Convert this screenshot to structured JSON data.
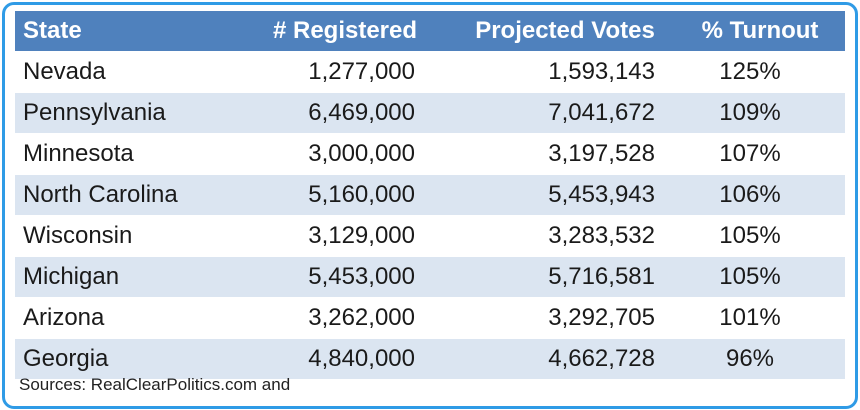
{
  "table": {
    "headers": {
      "state": "State",
      "registered": "# Registered",
      "projected": "Projected Votes",
      "turnout": "% Turnout"
    },
    "rows": [
      {
        "state": "Nevada",
        "registered": "1,277,000",
        "projected": "1,593,143",
        "turnout": "125%"
      },
      {
        "state": "Pennsylvania",
        "registered": "6,469,000",
        "projected": "7,041,672",
        "turnout": "109%"
      },
      {
        "state": "Minnesota",
        "registered": "3,000,000",
        "projected": "3,197,528",
        "turnout": "107%"
      },
      {
        "state": "North Carolina",
        "registered": "5,160,000",
        "projected": "5,453,943",
        "turnout": "106%"
      },
      {
        "state": "Wisconsin",
        "registered": "3,129,000",
        "projected": "3,283,532",
        "turnout": "105%"
      },
      {
        "state": "Michigan",
        "registered": "5,453,000",
        "projected": "5,716,581",
        "turnout": "105%"
      },
      {
        "state": "Arizona",
        "registered": "3,262,000",
        "projected": "3,292,705",
        "turnout": "101%"
      },
      {
        "state": "Georgia",
        "registered": "4,840,000",
        "projected": "4,662,728",
        "turnout": "96%"
      }
    ]
  },
  "footer": {
    "source": "Sources: RealClearPolitics.com and"
  },
  "colors": {
    "header_bg": "#4f81bd",
    "stripe_bg": "#dbe5f1",
    "frame_border": "#2f9be6"
  }
}
